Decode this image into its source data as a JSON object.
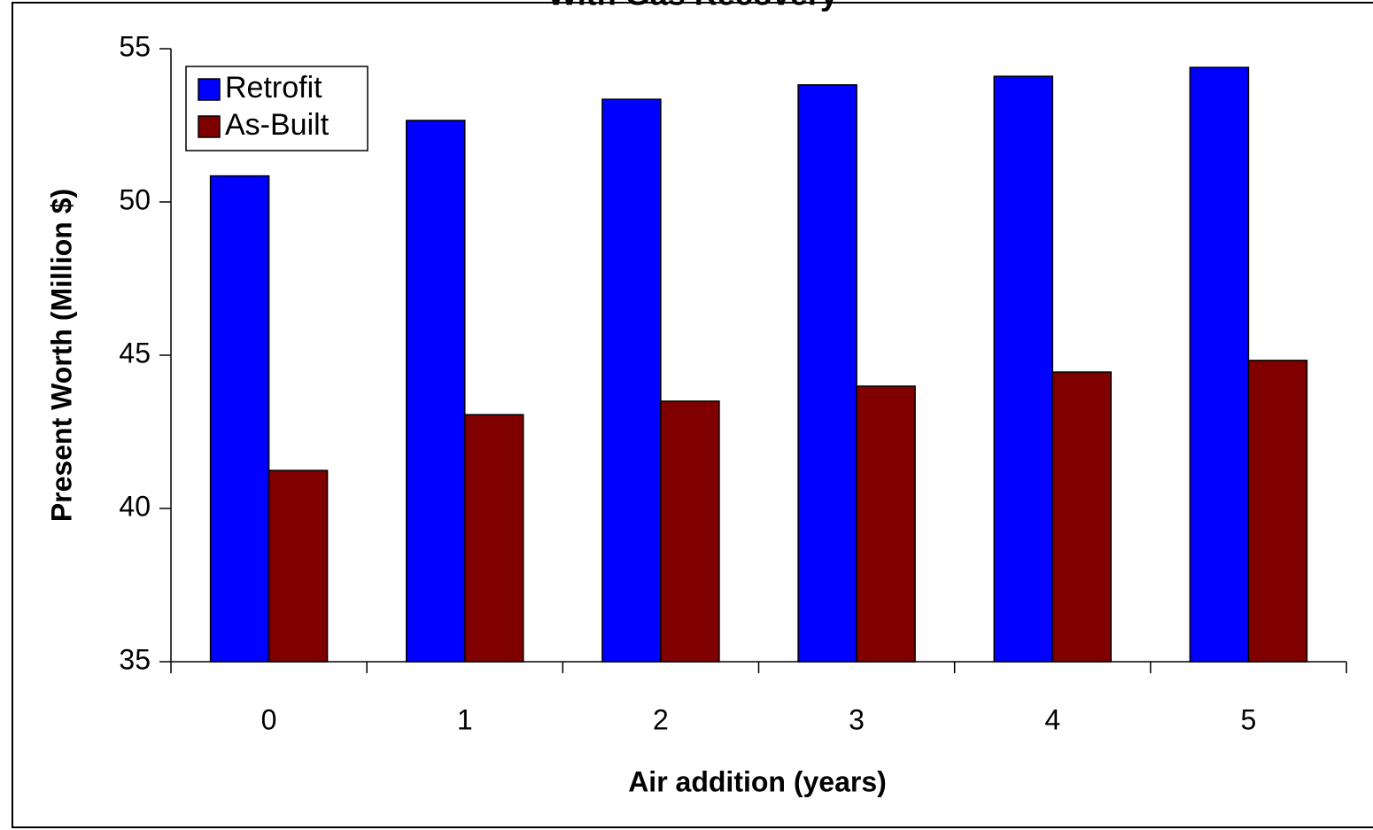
{
  "chart_data": {
    "type": "bar",
    "title": "With Gas Recovery",
    "x_label": "Air addition (years)",
    "y_label": "Present Worth (Million $)",
    "categories": [
      "0",
      "1",
      "2",
      "3",
      "4",
      "5"
    ],
    "series": [
      {
        "name": "Retrofit",
        "color": "#0000ff",
        "values": [
          50.85,
          52.66,
          53.35,
          53.82,
          54.1,
          54.39
        ]
      },
      {
        "name": "As-Built",
        "color": "#800000",
        "values": [
          41.24,
          43.06,
          43.5,
          43.99,
          44.45,
          44.83
        ]
      }
    ],
    "ylim": [
      35,
      55
    ],
    "yticks": [
      35,
      40,
      45,
      50,
      55
    ],
    "legend": "upper-left",
    "grid": false
  }
}
